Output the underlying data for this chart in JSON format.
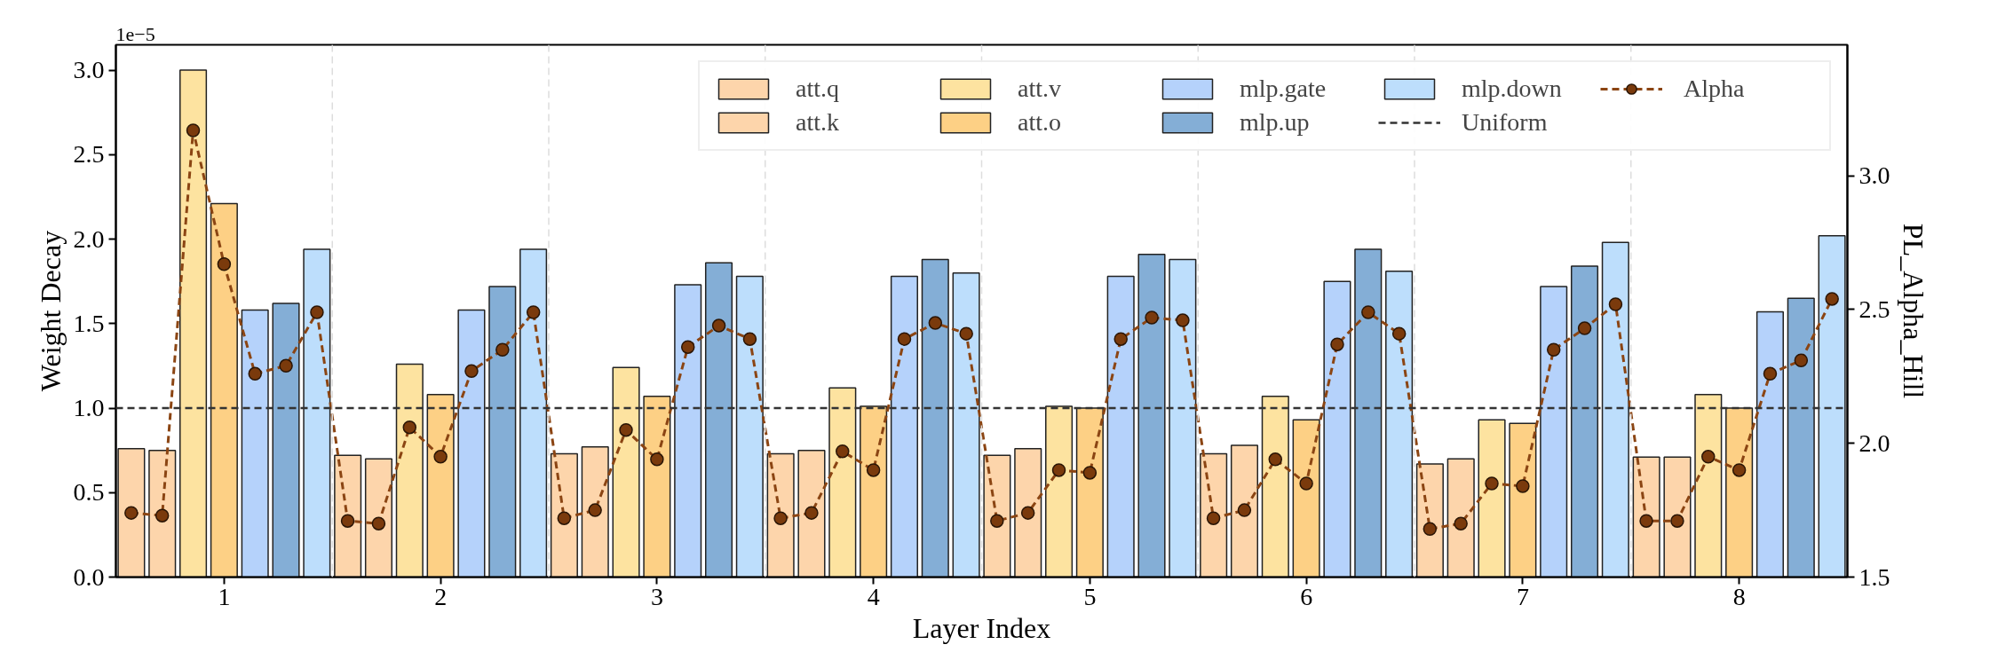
{
  "chart_data": {
    "type": "bar",
    "xlabel": "Layer Index",
    "ylabel": "Weight Decay",
    "y2label": "PL_Alpha_Hill",
    "annotations": [
      "1e−5"
    ],
    "x": [
      1,
      2,
      3,
      4,
      5,
      6,
      7,
      8
    ],
    "xlim": [
      0.5,
      8.5
    ],
    "xticks": [
      1,
      2,
      3,
      4,
      5,
      6,
      7,
      8
    ],
    "ylim": [
      0,
      3.15
    ],
    "yticks": [
      {
        "value": 0,
        "label": "0.0"
      },
      0.5,
      {
        "value": 1,
        "label": "1.0"
      },
      1.5,
      {
        "value": 2,
        "label": "2.0"
      },
      2.5,
      {
        "value": 3,
        "label": "3.0"
      }
    ],
    "y2lim": [
      1.5,
      3.49
    ],
    "y2ticks": [
      1.5,
      {
        "value": 2,
        "label": "2.0"
      },
      2.5,
      {
        "value": 3,
        "label": "3.0"
      }
    ],
    "grid": false,
    "legend": "top right",
    "series": [
      {
        "name": "att.q",
        "color": "#fdd5ab",
        "values": [
          0.76,
          0.72,
          0.73,
          0.73,
          0.72,
          0.73,
          0.67,
          0.71
        ]
      },
      {
        "name": "att.k",
        "color": "#fdd5ab",
        "values": [
          0.75,
          0.7,
          0.77,
          0.75,
          0.76,
          0.78,
          0.7,
          0.71
        ]
      },
      {
        "name": "att.v",
        "color": "#fde3a0",
        "values": [
          3.0,
          1.26,
          1.24,
          1.12,
          1.01,
          1.07,
          0.93,
          1.08
        ]
      },
      {
        "name": "att.o",
        "color": "#fdd085",
        "values": [
          2.21,
          1.08,
          1.07,
          1.01,
          1.0,
          0.93,
          0.91,
          1.0
        ]
      },
      {
        "name": "mlp.gate",
        "color": "#b5d2fb",
        "values": [
          1.58,
          1.58,
          1.73,
          1.78,
          1.78,
          1.75,
          1.72,
          1.57
        ]
      },
      {
        "name": "mlp.up",
        "color": "#84aed6",
        "values": [
          1.62,
          1.72,
          1.86,
          1.88,
          1.91,
          1.94,
          1.84,
          1.65
        ]
      },
      {
        "name": "mlp.down",
        "color": "#bddefc",
        "values": [
          1.94,
          1.94,
          1.78,
          1.8,
          1.88,
          1.81,
          1.98,
          2.02
        ]
      },
      {
        "name": "Alpha",
        "type": "line",
        "axis": "y2",
        "color": "#8b4513",
        "marker": "circle",
        "line_style": "dashed",
        "x": [
          0.571,
          0.714,
          0.857,
          1.0,
          1.143,
          1.286,
          1.429,
          1.571,
          1.714,
          1.857,
          2.0,
          2.143,
          2.286,
          2.429,
          2.571,
          2.714,
          2.857,
          3.0,
          3.143,
          3.286,
          3.429,
          3.571,
          3.714,
          3.857,
          4.0,
          4.143,
          4.286,
          4.429,
          4.571,
          4.714,
          4.857,
          5.0,
          5.143,
          5.286,
          5.429,
          5.571,
          5.714,
          5.857,
          6.0,
          6.143,
          6.286,
          6.429,
          6.571,
          6.714,
          6.857,
          7.0,
          7.143,
          7.286,
          7.429,
          7.571,
          7.714,
          7.857,
          8.0,
          8.143,
          8.286,
          8.429
        ],
        "values": [
          1.74,
          1.73,
          3.17,
          2.67,
          2.26,
          2.29,
          2.49,
          1.71,
          1.7,
          2.06,
          1.95,
          2.27,
          2.35,
          2.49,
          1.72,
          1.75,
          2.05,
          1.94,
          2.36,
          2.44,
          2.39,
          1.72,
          1.74,
          1.97,
          1.9,
          2.39,
          2.45,
          2.41,
          1.71,
          1.74,
          1.9,
          1.89,
          2.39,
          2.47,
          2.46,
          1.72,
          1.75,
          1.94,
          1.85,
          2.37,
          2.49,
          2.41,
          1.68,
          1.7,
          1.85,
          1.84,
          2.35,
          2.43,
          2.52,
          1.71,
          1.71,
          1.95,
          1.9,
          2.26,
          2.31,
          2.54
        ]
      }
    ],
    "ref_lines": [
      {
        "axis": "y",
        "value": 1.0,
        "label": "Uniform",
        "color": "#333333",
        "line_style": "dashed"
      },
      {
        "axis": "x",
        "value": 1.5,
        "color": "#dddddd",
        "line_style": "dashed"
      },
      {
        "axis": "x",
        "value": 2.5,
        "color": "#dddddd",
        "line_style": "dashed"
      },
      {
        "axis": "x",
        "value": 3.5,
        "color": "#dddddd",
        "line_style": "dashed"
      },
      {
        "axis": "x",
        "value": 4.5,
        "color": "#dddddd",
        "line_style": "dashed"
      },
      {
        "axis": "x",
        "value": 5.5,
        "color": "#dddddd",
        "line_style": "dashed"
      },
      {
        "axis": "x",
        "value": 6.5,
        "color": "#dddddd",
        "line_style": "dashed"
      },
      {
        "axis": "x",
        "value": 7.5,
        "color": "#dddddd",
        "line_style": "dashed"
      }
    ]
  }
}
